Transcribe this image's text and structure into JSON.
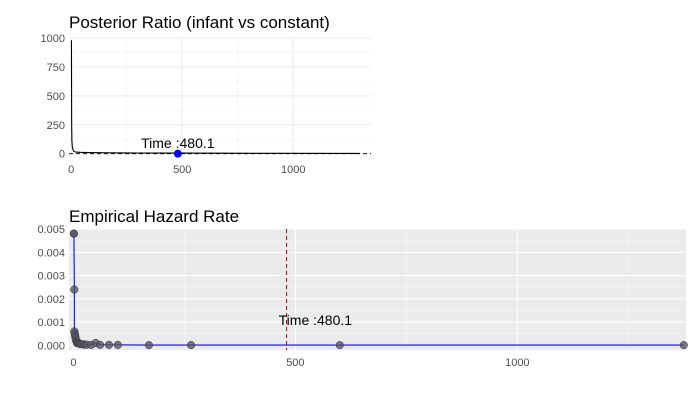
{
  "chart_data": [
    {
      "type": "line",
      "title": "Posterior Ratio (infant vs constant)",
      "xlabel": "",
      "ylabel": "",
      "xlim": [
        -10,
        1350
      ],
      "ylim": [
        -20,
        1000
      ],
      "x_ticks": [
        0,
        500,
        1000
      ],
      "y_ticks": [
        0,
        250,
        500,
        750,
        1000
      ],
      "grid": true,
      "background": "white",
      "series": [
        {
          "color": "#000000",
          "x": [
            1,
            2,
            3,
            5,
            8,
            12,
            20,
            40,
            80,
            160,
            300,
            480.1,
            700,
            1000,
            1300
          ],
          "y": [
            980,
            260,
            110,
            60,
            35,
            20,
            14,
            12,
            10,
            8,
            6,
            5,
            4,
            3,
            2
          ]
        }
      ],
      "reference_line": {
        "y": 0,
        "style": "dashed",
        "color": "#000000"
      },
      "highlight_point": {
        "x": 480.1,
        "y": 0,
        "color": "#0000ff"
      },
      "annotation": {
        "text": "Time :480.1",
        "x": 480.1,
        "y": 50
      }
    },
    {
      "type": "line",
      "title": "Empirical Hazard Rate",
      "xlabel": "",
      "ylabel": "",
      "xlim": [
        -10,
        1380
      ],
      "ylim": [
        -0.0002,
        0.005
      ],
      "x_ticks": [
        0,
        500,
        1000
      ],
      "y_ticks": [
        0.0,
        0.001,
        0.002,
        0.003,
        0.004,
        0.005
      ],
      "y_tick_labels": [
        "0.000",
        "0.001",
        "0.002",
        "0.003",
        "0.004",
        "0.005"
      ],
      "grid": true,
      "background": "#ebebeb",
      "series": [
        {
          "color": "#0000ff",
          "point_color": "#555566",
          "x": [
            1,
            1,
            2,
            2,
            3,
            4,
            5,
            6,
            8,
            10,
            12,
            15,
            20,
            25,
            30,
            40,
            50,
            60,
            80,
            100,
            170,
            265,
            600,
            1375
          ],
          "y": [
            0.0048,
            0.0048,
            0.0024,
            0.0006,
            0.0005,
            0.0004,
            0.0003,
            0.0002,
            0.0001,
            0.0001,
            0.0001,
            5e-05,
            5e-05,
            3e-05,
            3e-05,
            2e-05,
            0.0001,
            2e-05,
            2e-05,
            2e-05,
            1e-05,
            1e-05,
            1e-05,
            1e-05
          ]
        }
      ],
      "reference_line": {
        "x": 480.1,
        "style": "dashed",
        "color": "#cc0000"
      },
      "annotation": {
        "text": "Time :480.1",
        "x": 545,
        "y": 0.00088
      }
    }
  ]
}
